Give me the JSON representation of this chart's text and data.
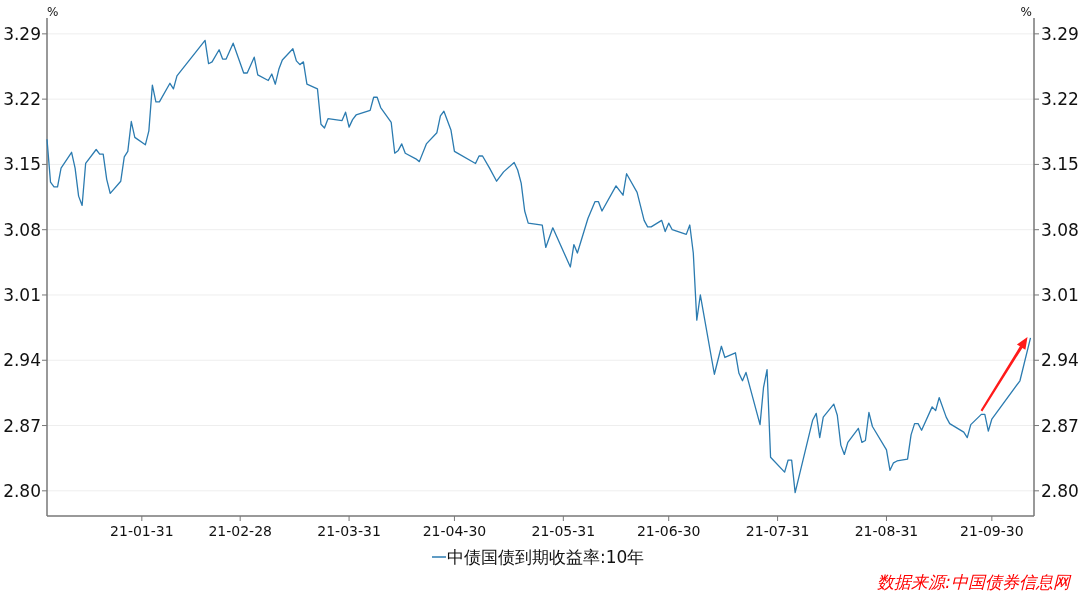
{
  "chart_data": {
    "type": "line",
    "ylabel": "%",
    "y2label": "%",
    "grid": "y",
    "legend": "bottom",
    "line_style": "solid",
    "xlim": [
      "--01-04",
      "--10-12"
    ],
    "xticks": [
      {
        "value": "--01-31",
        "label": "21-01-31"
      },
      {
        "value": "--02-28",
        "label": "21-02-28"
      },
      {
        "value": "--03-31",
        "label": "21-03-31"
      },
      {
        "value": "--04-30",
        "label": "21-04-30"
      },
      {
        "value": "--05-31",
        "label": "21-05-31"
      },
      {
        "value": "--06-30",
        "label": "21-06-30"
      },
      {
        "value": "--07-31",
        "label": "21-07-31"
      },
      {
        "value": "--08-31",
        "label": "21-08-31"
      },
      {
        "value": "--09-30",
        "label": "21-09-30"
      }
    ],
    "ylim": [
      2.773,
      3.307
    ],
    "yticks": [
      {
        "value": 2.8,
        "label": "2.80"
      },
      2.87,
      2.94,
      3.01,
      3.08,
      3.15,
      3.22,
      3.29
    ],
    "y2lim": [
      2.773,
      3.307
    ],
    "y2ticks": [
      {
        "value": 2.8,
        "label": "2.80"
      },
      2.87,
      2.94,
      3.01,
      3.08,
      3.15,
      3.22,
      3.29
    ],
    "x": [
      "--01-04",
      "--01-05",
      "--01-06",
      "--01-07",
      "--01-08",
      "--01-11",
      "--01-12",
      "--01-13",
      "--01-14",
      "--01-15",
      "--01-18",
      "--01-19",
      "--01-20",
      "--01-21",
      "--01-22",
      "--01-25",
      "--01-26",
      "--01-27",
      "--01-28",
      "--01-29",
      "--02-01",
      "--02-02",
      "--02-03",
      "--02-04",
      "--02-05",
      "--02-08",
      "--02-09",
      "--02-10",
      "--02-18",
      "--02-19",
      "--02-20",
      "--02-22",
      "--02-23",
      "--02-24",
      "--02-26",
      "--03-01",
      "--03-02",
      "--03-04",
      "--03-05",
      "--03-08",
      "--03-09",
      "--03-10",
      "--03-11",
      "--03-12",
      "--03-15",
      "--03-16",
      "--03-17",
      "--03-18",
      "--03-19",
      "--03-22",
      "--03-23",
      "--03-24",
      "--03-25",
      "--03-29",
      "--03-30",
      "--03-31",
      "--04-01",
      "--04-02",
      "--04-06",
      "--04-07",
      "--04-08",
      "--04-09",
      "--04-12",
      "--04-13",
      "--04-14",
      "--04-15",
      "--04-16",
      "--04-19",
      "--04-20",
      "--04-22",
      "--04-25",
      "--04-26",
      "--04-27",
      "--04-29",
      "--04-30",
      "--05-06",
      "--05-07",
      "--05-08",
      "--05-10",
      "--05-12",
      "--05-14",
      "--05-17",
      "--05-18",
      "--05-19",
      "--05-20",
      "--05-21",
      "--05-25",
      "--05-26",
      "--05-28",
      "--06-02",
      "--06-03",
      "--06-04",
      "--06-07",
      "--06-09",
      "--06-10",
      "--06-11",
      "--06-15",
      "--06-17",
      "--06-18",
      "--06-21",
      "--06-23",
      "--06-24",
      "--06-25",
      "--06-28",
      "--06-29",
      "--06-30",
      "--07-01",
      "--07-05",
      "--07-06",
      "--07-07",
      "--07-08",
      "--07-09",
      "--07-13",
      "--07-15",
      "--07-16",
      "--07-19",
      "--07-20",
      "--07-21",
      "--07-22",
      "--07-26",
      "--07-27",
      "--07-28",
      "--07-29",
      "--08-02",
      "--08-03",
      "--08-04",
      "--08-05",
      "--08-10",
      "--08-11",
      "--08-12",
      "--08-13",
      "--08-16",
      "--08-17",
      "--08-18",
      "--08-19",
      "--08-20",
      "--08-23",
      "--08-24",
      "--08-25",
      "--08-26",
      "--08-27",
      "--08-31",
      "--09-01",
      "--09-02",
      "--09-03",
      "--09-06",
      "--09-07",
      "--09-08",
      "--09-09",
      "--09-10",
      "--09-13",
      "--09-14",
      "--09-15",
      "--09-17",
      "--09-18",
      "--09-22",
      "--09-23",
      "--09-24",
      "--09-27",
      "--09-28",
      "--09-29",
      "--09-30",
      "--10-08",
      "--10-11"
    ],
    "series": [
      {
        "name": "中债国债到期收益率:10年",
        "color": "#2b7bb0",
        "values": [
          3.177,
          3.131,
          3.126,
          3.126,
          3.146,
          3.163,
          3.146,
          3.116,
          3.106,
          3.151,
          3.166,
          3.161,
          3.161,
          3.134,
          3.119,
          3.132,
          3.158,
          3.164,
          3.196,
          3.179,
          3.171,
          3.186,
          3.235,
          3.217,
          3.217,
          3.237,
          3.231,
          3.245,
          3.283,
          3.258,
          3.26,
          3.273,
          3.263,
          3.263,
          3.28,
          3.248,
          3.248,
          3.265,
          3.246,
          3.24,
          3.247,
          3.236,
          3.252,
          3.262,
          3.274,
          3.261,
          3.257,
          3.26,
          3.236,
          3.231,
          3.193,
          3.189,
          3.199,
          3.197,
          3.206,
          3.19,
          3.198,
          3.203,
          3.208,
          3.222,
          3.222,
          3.211,
          3.195,
          3.162,
          3.165,
          3.172,
          3.162,
          3.156,
          3.153,
          3.172,
          3.184,
          3.202,
          3.207,
          3.187,
          3.164,
          3.151,
          3.159,
          3.159,
          3.146,
          3.132,
          3.142,
          3.152,
          3.144,
          3.13,
          3.1,
          3.087,
          3.085,
          3.061,
          3.082,
          3.04,
          3.064,
          3.055,
          3.092,
          3.11,
          3.11,
          3.1,
          3.127,
          3.117,
          3.14,
          3.12,
          3.09,
          3.083,
          3.083,
          3.09,
          3.078,
          3.087,
          3.08,
          3.075,
          3.085,
          3.055,
          2.983,
          3.01,
          2.925,
          2.955,
          2.943,
          2.948,
          2.926,
          2.918,
          2.927,
          2.871,
          2.911,
          2.93,
          2.836,
          2.82,
          2.833,
          2.833,
          2.798,
          2.876,
          2.883,
          2.857,
          2.879,
          2.893,
          2.881,
          2.849,
          2.839,
          2.852,
          2.867,
          2.852,
          2.854,
          2.884,
          2.869,
          2.844,
          2.822,
          2.83,
          2.832,
          2.834,
          2.86,
          2.872,
          2.872,
          2.865,
          2.89,
          2.886,
          2.9,
          2.879,
          2.872,
          2.863,
          2.857,
          2.871,
          2.882,
          2.882,
          2.864,
          2.877,
          2.918,
          2.964
        ]
      }
    ],
    "annotations": [
      "数据来源:中国债券信息网"
    ]
  }
}
